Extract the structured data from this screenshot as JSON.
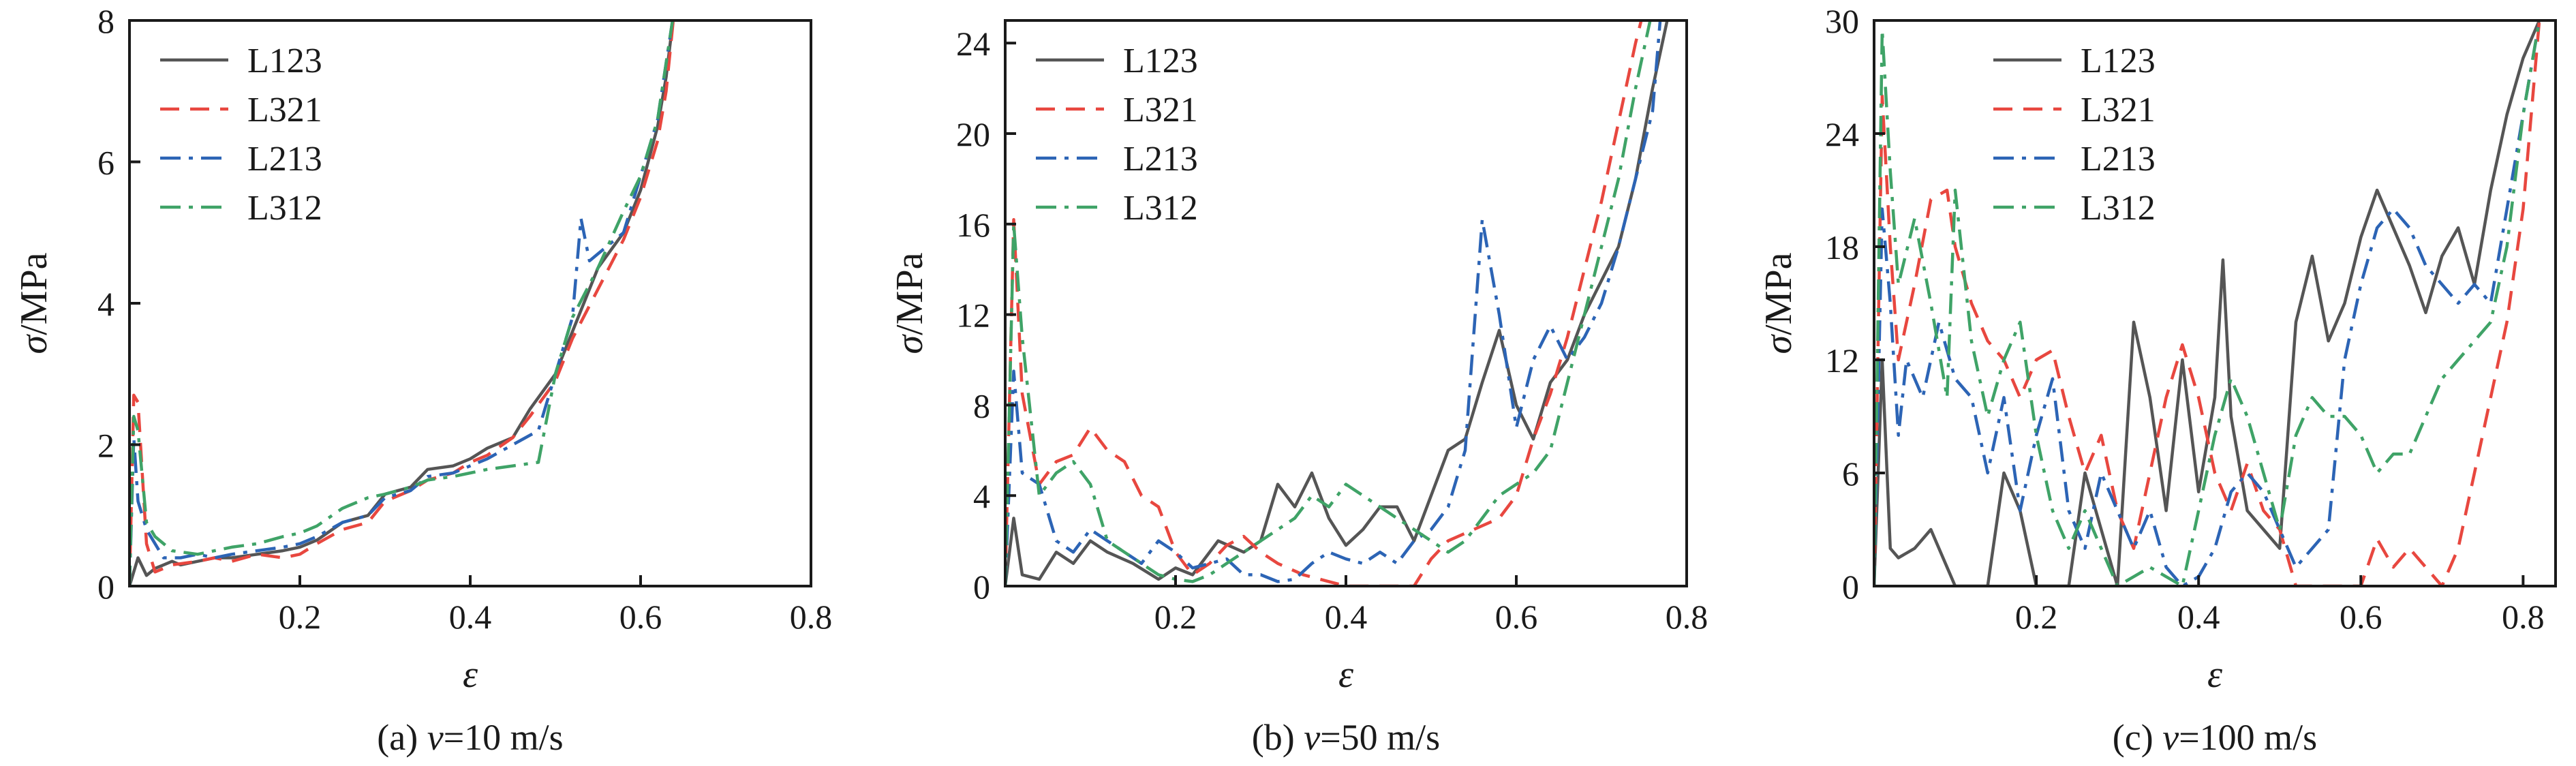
{
  "figure": {
    "colors": {
      "L123": "#555555",
      "L321": "#e8473f",
      "L213": "#2c64b5",
      "L312": "#3fa367"
    },
    "dash": {
      "L123": "",
      "L321": "dashed",
      "L213": "dash-dot",
      "L312": "dash-dot"
    }
  },
  "chart_data": [
    {
      "type": "line",
      "caption": "(a) v=10 m/s",
      "caption_parts": [
        "(a) ",
        "v",
        "=10 m/s"
      ],
      "xlabel": "ε",
      "ylabel": "σ/MPa",
      "xlim": [
        0,
        0.8
      ],
      "ylim": [
        0,
        8
      ],
      "xticks": [
        0.2,
        0.4,
        0.6,
        0.8
      ],
      "xtick_labels": [
        "0.2",
        "0.4",
        "0.6",
        "0.8"
      ],
      "yticks": [
        0,
        2,
        4,
        6,
        8
      ],
      "ytick_labels": [
        "0",
        "2",
        "4",
        "6",
        "8"
      ],
      "grid": false,
      "legend": "top-left",
      "series": [
        {
          "name": "L123",
          "x": [
            0,
            0.01,
            0.02,
            0.03,
            0.04,
            0.05,
            0.06,
            0.08,
            0.1,
            0.12,
            0.15,
            0.18,
            0.2,
            0.22,
            0.25,
            0.28,
            0.3,
            0.33,
            0.35,
            0.38,
            0.4,
            0.42,
            0.45,
            0.47,
            0.5,
            0.52,
            0.55,
            0.58,
            0.6,
            0.62,
            0.63,
            0.64
          ],
          "y": [
            0,
            0.4,
            0.15,
            0.25,
            0.3,
            0.35,
            0.3,
            0.35,
            0.4,
            0.4,
            0.45,
            0.5,
            0.55,
            0.65,
            0.9,
            1.0,
            1.3,
            1.4,
            1.65,
            1.7,
            1.8,
            1.95,
            2.1,
            2.5,
            3.0,
            3.6,
            4.5,
            5.0,
            5.6,
            6.5,
            7.2,
            8.2
          ]
        },
        {
          "name": "L321",
          "x": [
            0,
            0.005,
            0.01,
            0.02,
            0.03,
            0.05,
            0.08,
            0.1,
            0.12,
            0.15,
            0.18,
            0.2,
            0.22,
            0.25,
            0.28,
            0.3,
            0.33,
            0.35,
            0.38,
            0.4,
            0.42,
            0.45,
            0.47,
            0.5,
            0.52,
            0.55,
            0.58,
            0.6,
            0.62,
            0.63,
            0.64
          ],
          "y": [
            0,
            2.7,
            2.6,
            0.6,
            0.2,
            0.3,
            0.35,
            0.4,
            0.35,
            0.45,
            0.4,
            0.45,
            0.6,
            0.8,
            0.9,
            1.2,
            1.35,
            1.5,
            1.6,
            1.75,
            1.85,
            2.1,
            2.4,
            2.9,
            3.5,
            4.2,
            4.9,
            5.5,
            6.3,
            7.0,
            8.2
          ]
        },
        {
          "name": "L213",
          "x": [
            0,
            0.005,
            0.01,
            0.02,
            0.04,
            0.06,
            0.08,
            0.1,
            0.12,
            0.15,
            0.18,
            0.2,
            0.22,
            0.25,
            0.28,
            0.3,
            0.33,
            0.35,
            0.38,
            0.4,
            0.42,
            0.45,
            0.48,
            0.5,
            0.52,
            0.53,
            0.54,
            0.55,
            0.58,
            0.6,
            0.62,
            0.64
          ],
          "y": [
            0,
            2.1,
            1.2,
            0.8,
            0.4,
            0.4,
            0.45,
            0.4,
            0.45,
            0.5,
            0.55,
            0.6,
            0.7,
            0.9,
            1.0,
            1.25,
            1.35,
            1.55,
            1.6,
            1.7,
            1.8,
            2.0,
            2.2,
            3.0,
            3.8,
            5.2,
            4.6,
            4.7,
            5.0,
            5.8,
            6.6,
            8.2
          ]
        },
        {
          "name": "L312",
          "x": [
            0,
            0.005,
            0.01,
            0.02,
            0.03,
            0.05,
            0.08,
            0.1,
            0.12,
            0.15,
            0.18,
            0.2,
            0.22,
            0.25,
            0.28,
            0.3,
            0.33,
            0.35,
            0.38,
            0.4,
            0.42,
            0.45,
            0.48,
            0.5,
            0.52,
            0.55,
            0.58,
            0.6,
            0.62,
            0.63,
            0.64
          ],
          "y": [
            0,
            2.4,
            2.2,
            0.9,
            0.7,
            0.5,
            0.45,
            0.5,
            0.55,
            0.6,
            0.7,
            0.75,
            0.85,
            1.1,
            1.25,
            1.3,
            1.4,
            1.5,
            1.55,
            1.6,
            1.65,
            1.7,
            1.75,
            3.0,
            3.8,
            4.5,
            5.3,
            5.8,
            6.6,
            7.4,
            8.2
          ]
        }
      ]
    },
    {
      "type": "line",
      "caption": "(b) v=50 m/s",
      "caption_parts": [
        "(b) ",
        "v",
        "=50 m/s"
      ],
      "xlabel": "ε",
      "ylabel": "σ/MPa",
      "xlim": [
        0,
        0.8
      ],
      "ylim": [
        0,
        25
      ],
      "xticks": [
        0.2,
        0.4,
        0.6,
        0.8
      ],
      "xtick_labels": [
        "0.2",
        "0.4",
        "0.6",
        "0.8"
      ],
      "yticks": [
        0,
        4,
        8,
        12,
        16,
        20,
        24
      ],
      "ytick_labels": [
        "0",
        "4",
        "8",
        "12",
        "16",
        "20",
        "24"
      ],
      "grid": false,
      "legend": "top-left",
      "series": [
        {
          "name": "L123",
          "x": [
            0,
            0.01,
            0.02,
            0.04,
            0.06,
            0.08,
            0.1,
            0.12,
            0.15,
            0.18,
            0.2,
            0.22,
            0.25,
            0.28,
            0.3,
            0.32,
            0.34,
            0.36,
            0.38,
            0.4,
            0.42,
            0.44,
            0.46,
            0.48,
            0.5,
            0.52,
            0.54,
            0.56,
            0.58,
            0.6,
            0.62,
            0.64,
            0.66,
            0.68,
            0.7,
            0.72,
            0.74,
            0.76,
            0.78
          ],
          "y": [
            0,
            3,
            0.5,
            0.3,
            1.5,
            1.0,
            2.0,
            1.5,
            1.0,
            0.3,
            0.8,
            0.5,
            2.0,
            1.5,
            2.0,
            4.5,
            3.5,
            5.0,
            3.0,
            1.8,
            2.5,
            3.5,
            3.5,
            2.0,
            4.0,
            6.0,
            6.5,
            9.0,
            11.3,
            8.0,
            6.5,
            9.0,
            10.0,
            12.0,
            13.5,
            15.0,
            18.0,
            22.0,
            25.5
          ]
        },
        {
          "name": "L321",
          "x": [
            0,
            0.01,
            0.02,
            0.04,
            0.06,
            0.08,
            0.1,
            0.12,
            0.14,
            0.16,
            0.18,
            0.2,
            0.22,
            0.24,
            0.26,
            0.28,
            0.3,
            0.32,
            0.35,
            0.38,
            0.4,
            0.42,
            0.45,
            0.48,
            0.5,
            0.52,
            0.55,
            0.58,
            0.6,
            0.62,
            0.64,
            0.66,
            0.68,
            0.7,
            0.72,
            0.74,
            0.75
          ],
          "y": [
            0,
            16.2,
            8.5,
            4.5,
            5.5,
            5.8,
            7.0,
            6.0,
            5.5,
            4.0,
            3.5,
            1.5,
            0.5,
            1.0,
            1.8,
            2.2,
            1.5,
            1.0,
            0.5,
            0.2,
            0,
            0,
            0,
            0,
            1.2,
            2.0,
            2.5,
            3.0,
            4.0,
            6.5,
            8.5,
            11.0,
            14.0,
            17.0,
            20.5,
            24.0,
            25.5
          ]
        },
        {
          "name": "L213",
          "x": [
            0,
            0.01,
            0.02,
            0.04,
            0.06,
            0.08,
            0.1,
            0.12,
            0.14,
            0.16,
            0.18,
            0.2,
            0.22,
            0.24,
            0.26,
            0.28,
            0.3,
            0.32,
            0.34,
            0.36,
            0.38,
            0.4,
            0.42,
            0.44,
            0.46,
            0.48,
            0.5,
            0.52,
            0.54,
            0.56,
            0.58,
            0.6,
            0.62,
            0.64,
            0.66,
            0.68,
            0.7,
            0.72,
            0.74,
            0.76,
            0.77
          ],
          "y": [
            0,
            9.5,
            5.0,
            4.5,
            2.0,
            1.5,
            2.5,
            2.0,
            1.5,
            1.0,
            2.0,
            1.5,
            0.8,
            1.0,
            1.2,
            0.5,
            0.5,
            0.2,
            0.3,
            1.0,
            1.5,
            1.2,
            1.0,
            1.5,
            1.0,
            2.0,
            2.5,
            3.5,
            6.0,
            16.2,
            12.0,
            7.0,
            10.0,
            11.5,
            10.0,
            11.0,
            12.5,
            15.0,
            18.0,
            21.0,
            25.5
          ]
        },
        {
          "name": "L312",
          "x": [
            0,
            0.01,
            0.02,
            0.04,
            0.06,
            0.08,
            0.1,
            0.12,
            0.14,
            0.16,
            0.18,
            0.2,
            0.22,
            0.24,
            0.26,
            0.28,
            0.3,
            0.32,
            0.34,
            0.36,
            0.38,
            0.4,
            0.42,
            0.44,
            0.46,
            0.48,
            0.5,
            0.52,
            0.54,
            0.56,
            0.58,
            0.6,
            0.62,
            0.64,
            0.66,
            0.68,
            0.7,
            0.72,
            0.74,
            0.76
          ],
          "y": [
            0,
            16.0,
            11.0,
            4.0,
            5.0,
            5.5,
            4.5,
            2.0,
            1.5,
            1.0,
            0.5,
            0.3,
            0.2,
            0.5,
            1.0,
            1.5,
            2.0,
            2.5,
            3.0,
            4.0,
            3.5,
            4.5,
            4.0,
            3.5,
            3.0,
            2.5,
            2.0,
            1.5,
            2.0,
            3.0,
            4.0,
            4.5,
            5.0,
            6.0,
            9.0,
            12.0,
            15.0,
            18.0,
            22.0,
            25.5
          ]
        }
      ]
    },
    {
      "type": "line",
      "caption": "(c) v=100 m/s",
      "caption_parts": [
        "(c) ",
        "v",
        "=100 m/s"
      ],
      "xlabel": "ε",
      "ylabel": "σ/MPa",
      "xlim": [
        0,
        0.84
      ],
      "ylim": [
        0,
        30
      ],
      "xticks": [
        0.2,
        0.4,
        0.6,
        0.8
      ],
      "xtick_labels": [
        "0.2",
        "0.4",
        "0.6",
        "0.8"
      ],
      "yticks": [
        0,
        6,
        12,
        18,
        24,
        30
      ],
      "ytick_labels": [
        "0",
        "6",
        "12",
        "18",
        "24",
        "30"
      ],
      "grid": false,
      "legend": "top-center",
      "series": [
        {
          "name": "L123",
          "x": [
            0,
            0.01,
            0.02,
            0.03,
            0.05,
            0.07,
            0.09,
            0.1,
            0.12,
            0.14,
            0.16,
            0.18,
            0.2,
            0.22,
            0.24,
            0.26,
            0.28,
            0.3,
            0.32,
            0.34,
            0.36,
            0.38,
            0.4,
            0.42,
            0.43,
            0.44,
            0.46,
            0.48,
            0.5,
            0.52,
            0.54,
            0.56,
            0.58,
            0.6,
            0.62,
            0.64,
            0.66,
            0.68,
            0.7,
            0.72,
            0.74,
            0.76,
            0.78,
            0.8,
            0.82
          ],
          "y": [
            0,
            12,
            2.0,
            1.5,
            2.0,
            3.0,
            1.0,
            0,
            0,
            0,
            6.0,
            4.0,
            0,
            0,
            0,
            6.0,
            3.0,
            0,
            14.0,
            10.0,
            4.0,
            12.0,
            5.0,
            10.0,
            17.3,
            9.0,
            4.0,
            3.0,
            2.0,
            14.0,
            17.5,
            13.0,
            15.0,
            18.5,
            21.0,
            19.0,
            17.0,
            14.5,
            17.5,
            19.0,
            16.0,
            21.0,
            25.0,
            28.0,
            30.0
          ]
        },
        {
          "name": "L321",
          "x": [
            0,
            0.01,
            0.02,
            0.03,
            0.05,
            0.07,
            0.09,
            0.1,
            0.12,
            0.14,
            0.16,
            0.18,
            0.2,
            0.22,
            0.24,
            0.26,
            0.28,
            0.3,
            0.32,
            0.34,
            0.36,
            0.38,
            0.4,
            0.42,
            0.44,
            0.46,
            0.48,
            0.5,
            0.52,
            0.54,
            0.56,
            0.58,
            0.6,
            0.62,
            0.64,
            0.66,
            0.68,
            0.7,
            0.72,
            0.74,
            0.76,
            0.78,
            0.8,
            0.82
          ],
          "y": [
            0,
            26,
            18,
            12,
            16,
            20.5,
            21,
            18,
            15,
            13,
            12,
            10,
            12,
            12.5,
            9,
            6,
            8,
            4,
            2,
            6,
            10,
            12.8,
            10,
            6,
            4,
            6.5,
            4,
            3,
            0,
            0,
            0,
            0,
            0,
            2.5,
            1,
            2,
            1,
            0,
            2,
            6,
            10,
            14,
            20,
            30
          ]
        },
        {
          "name": "L213",
          "x": [
            0,
            0.01,
            0.02,
            0.03,
            0.04,
            0.06,
            0.08,
            0.1,
            0.12,
            0.14,
            0.16,
            0.18,
            0.2,
            0.22,
            0.24,
            0.26,
            0.28,
            0.3,
            0.32,
            0.34,
            0.36,
            0.38,
            0.4,
            0.42,
            0.44,
            0.46,
            0.48,
            0.5,
            0.52,
            0.54,
            0.56,
            0.58,
            0.6,
            0.62,
            0.64,
            0.66,
            0.68,
            0.7,
            0.72,
            0.74,
            0.76,
            0.78,
            0.8,
            0.82
          ],
          "y": [
            0,
            20,
            15,
            8,
            12,
            10,
            14,
            11,
            10,
            6,
            10,
            4,
            8,
            11,
            4,
            2,
            6,
            4,
            2,
            4,
            1,
            0,
            0.5,
            2,
            5,
            6,
            5,
            3,
            1,
            2,
            3,
            12,
            16,
            19,
            20,
            19,
            17,
            16,
            15,
            16,
            15,
            20,
            25,
            30
          ]
        },
        {
          "name": "L312",
          "x": [
            0,
            0.01,
            0.02,
            0.03,
            0.05,
            0.07,
            0.09,
            0.1,
            0.12,
            0.14,
            0.16,
            0.18,
            0.2,
            0.22,
            0.24,
            0.26,
            0.28,
            0.3,
            0.32,
            0.34,
            0.36,
            0.38,
            0.4,
            0.42,
            0.44,
            0.46,
            0.48,
            0.5,
            0.52,
            0.54,
            0.56,
            0.58,
            0.6,
            0.62,
            0.64,
            0.66,
            0.68,
            0.7,
            0.72,
            0.74,
            0.76,
            0.78,
            0.8,
            0.82
          ],
          "y": [
            0,
            29.5,
            22,
            16,
            19.5,
            15,
            10,
            21,
            13,
            9,
            12,
            14,
            8,
            4,
            2,
            4,
            2,
            0,
            0.5,
            1,
            0.5,
            0,
            4,
            8,
            11,
            9,
            6,
            3,
            8,
            10,
            9,
            9,
            8,
            6,
            7,
            7,
            9,
            11,
            12,
            13,
            14,
            18,
            25,
            30
          ]
        }
      ]
    }
  ]
}
